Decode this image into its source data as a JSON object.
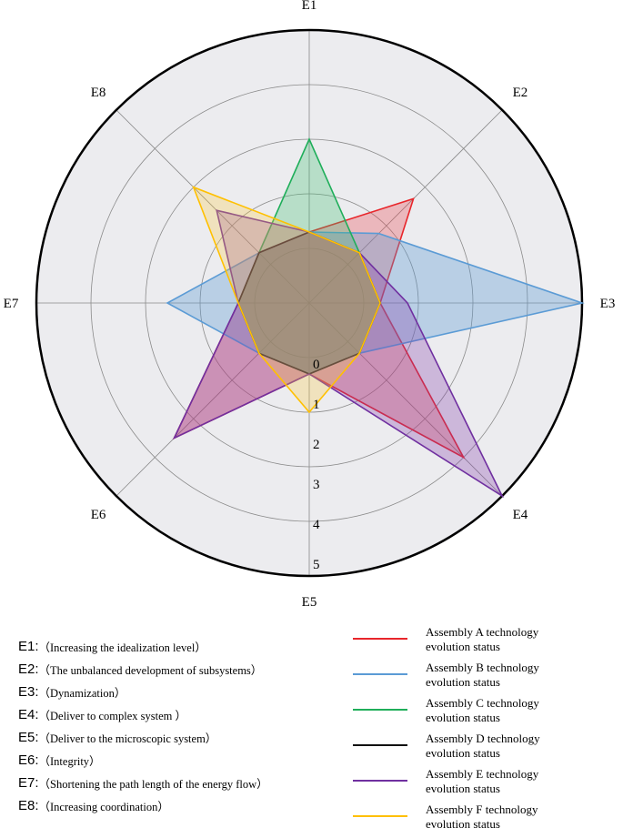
{
  "chart_data": {
    "type": "radar",
    "axes": [
      "E1",
      "E2",
      "E3",
      "E4",
      "E5",
      "E6",
      "E7",
      "E8"
    ],
    "rlim": [
      0,
      5
    ],
    "ticks": [
      "0",
      "1",
      "2",
      "3",
      "4",
      "5"
    ],
    "grid": true,
    "legend_position": "bottom-right",
    "series": [
      {
        "name": "Assembly A technology evolution status",
        "color": "#e8262b",
        "fill": "rgba(232,70,80,0.32)",
        "values": [
          1.3,
          2.7,
          1.3,
          4.0,
          1.3,
          3.5,
          1.3,
          1.3
        ]
      },
      {
        "name": "Assembly B technology evolution status",
        "color": "#5b9bd5",
        "fill": "rgba(91,155,213,0.35)",
        "values": [
          1.3,
          1.8,
          5.0,
          1.3,
          1.3,
          1.3,
          2.6,
          1.3
        ]
      },
      {
        "name": "Assembly C technology evolution status",
        "color": "#1fae5a",
        "fill": "rgba(60,190,110,0.30)",
        "values": [
          3.0,
          1.3,
          1.3,
          1.3,
          1.3,
          1.3,
          1.3,
          1.3
        ]
      },
      {
        "name": "Assembly D technology evolution status",
        "color": "#111111",
        "fill": "rgba(60,60,40,0.20)",
        "values": [
          1.3,
          1.3,
          1.3,
          1.3,
          1.3,
          1.3,
          1.3,
          1.3
        ]
      },
      {
        "name": "Assembly E technology evolution status",
        "color": "#7030a0",
        "fill": "rgba(130,60,170,0.30)",
        "values": [
          1.3,
          1.3,
          1.8,
          5.0,
          1.3,
          3.5,
          1.3,
          2.4
        ]
      },
      {
        "name": "Assembly F technology evolution status",
        "color": "#ffc000",
        "fill": "rgba(250,200,60,0.28)",
        "values": [
          1.3,
          1.3,
          1.3,
          1.3,
          2.0,
          1.3,
          1.3,
          3.0
        ]
      }
    ]
  },
  "definitions": [
    {
      "key": "E1:",
      "text": "（Increasing the idealization level）"
    },
    {
      "key": "E2:",
      "text": "（The unbalanced development of subsystems）"
    },
    {
      "key": "E3:",
      "text": "（Dynamization）"
    },
    {
      "key": "E4:",
      "text": "（Deliver to complex system ）"
    },
    {
      "key": "E5:",
      "text": "（Deliver to the microscopic system）"
    },
    {
      "key": "E6:",
      "text": "（Integrity）"
    },
    {
      "key": "E7:",
      "text": "（Shortening the path length of the energy flow）"
    },
    {
      "key": "E8:",
      "text": "（Increasing  coordination）"
    }
  ]
}
